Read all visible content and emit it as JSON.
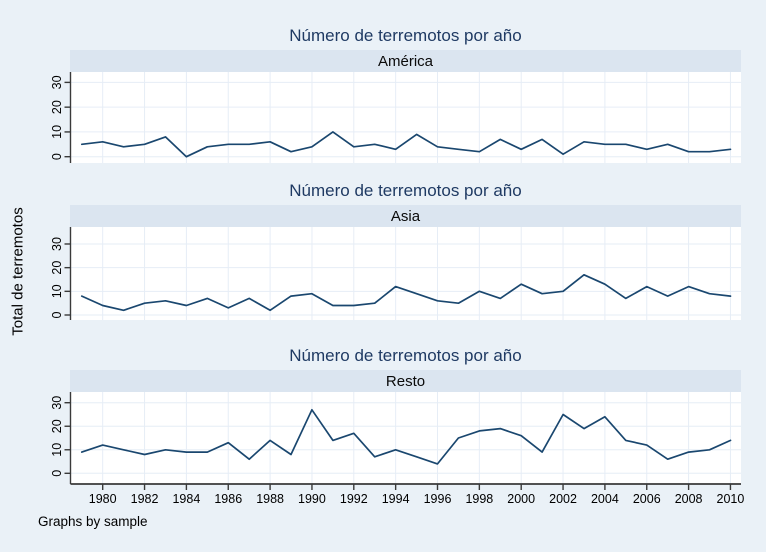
{
  "figure": {
    "y_axis_title": "Total de terremotos",
    "note": "Graphs by sample"
  },
  "colors": {
    "background": "#eaf1f7",
    "band": "#dbe5f0",
    "plot_bg": "#ffffff",
    "grid": "#e6edf6",
    "line": "#1a476f",
    "title": "#1f3a63",
    "text": "#000000",
    "axis": "#3a3a3a"
  },
  "chart_data": {
    "type": "line",
    "title": "Número de terremotos por año",
    "ylabel": "Total de terremotos",
    "xlabel": "",
    "note": "Graphs by sample",
    "grid": true,
    "legend_position": "none",
    "ylim": [
      0,
      30
    ],
    "xlim": [
      1978.5,
      2010.5
    ],
    "y_ticks": [
      0,
      10,
      20,
      30
    ],
    "x_ticks": [
      1980,
      1982,
      1984,
      1986,
      1988,
      1990,
      1992,
      1994,
      1996,
      1998,
      2000,
      2002,
      2004,
      2006,
      2008,
      2010
    ],
    "x": [
      1979,
      1980,
      1981,
      1982,
      1983,
      1984,
      1985,
      1986,
      1987,
      1988,
      1989,
      1990,
      1991,
      1992,
      1993,
      1994,
      1995,
      1996,
      1997,
      1998,
      1999,
      2000,
      2001,
      2002,
      2003,
      2004,
      2005,
      2006,
      2007,
      2008,
      2009,
      2010
    ],
    "panels": [
      {
        "title": "Número de terremotos por año",
        "subtitle": "América",
        "values": [
          5,
          6,
          4,
          5,
          8,
          0,
          4,
          5,
          5,
          6,
          2,
          4,
          10,
          4,
          5,
          3,
          9,
          4,
          3,
          2,
          7,
          3,
          7,
          1,
          6,
          5,
          5,
          3,
          5,
          2,
          2,
          3
        ]
      },
      {
        "title": "Número de terremotos por año",
        "subtitle": "Asia",
        "values": [
          8,
          4,
          2,
          5,
          6,
          4,
          7,
          3,
          7,
          2,
          8,
          9,
          4,
          4,
          5,
          12,
          9,
          6,
          5,
          10,
          7,
          13,
          9,
          10,
          17,
          13,
          7,
          12,
          8,
          12,
          9,
          8
        ]
      },
      {
        "title": "Número de terremotos por año",
        "subtitle": "Resto",
        "values": [
          9,
          12,
          10,
          8,
          10,
          9,
          9,
          13,
          6,
          14,
          8,
          27,
          14,
          17,
          7,
          10,
          7,
          4,
          15,
          18,
          19,
          16,
          9,
          25,
          19,
          24,
          14,
          12,
          6,
          9,
          10,
          14
        ]
      }
    ]
  }
}
